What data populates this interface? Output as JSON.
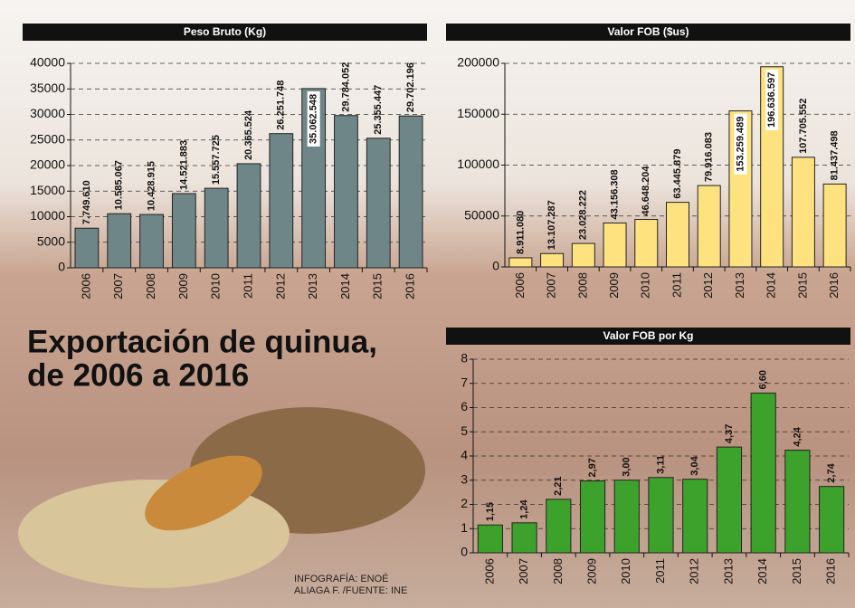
{
  "title_lines": [
    "Exportación de quinua,",
    "de 2006 a 2016"
  ],
  "credit_lines": [
    "INFOGRAFÍA: ENOÉ",
    "ALIAGA F. /FUENTE: INE"
  ],
  "chart_data": [
    {
      "type": "bar",
      "title": "Peso Bruto (Kg)",
      "categories": [
        "2006",
        "2007",
        "2008",
        "2009",
        "2010",
        "2011",
        "2012",
        "2013",
        "2014",
        "2015",
        "2016"
      ],
      "values": [
        7749.61,
        10585.067,
        10428.915,
        14521.883,
        15557.725,
        20365.524,
        26251.748,
        35062.548,
        29784.052,
        25355.447,
        29702.196
      ],
      "value_labels": [
        "7.749.610",
        "10.585.067",
        "10.428.915",
        "14.521.883",
        "15.557.725",
        "20.365.524",
        "26.251.748",
        "35.062.548",
        "29.784.052",
        "25.355.447",
        "29.702.196"
      ],
      "color": "#6f8688",
      "ylim": [
        0,
        40000
      ],
      "yticks": [
        0,
        5000,
        10000,
        15000,
        20000,
        25000,
        30000,
        35000,
        40000
      ],
      "grid": true
    },
    {
      "type": "bar",
      "title": "Valor FOB ($us)",
      "categories": [
        "2006",
        "2007",
        "2008",
        "2009",
        "2010",
        "2011",
        "2012",
        "2013",
        "2014",
        "2015",
        "2016"
      ],
      "values": [
        8911.08,
        13107.287,
        23028.222,
        43156.308,
        46648.204,
        63445.879,
        79916.083,
        153259.489,
        196636.597,
        107705.552,
        81437.498
      ],
      "value_labels": [
        "8.911.080",
        "13.107.287",
        "23.028.222",
        "43.156.308",
        "46.648.204",
        "63.445.879",
        "79.916.083",
        "153.259.489",
        "196.636.597",
        "107.705.552",
        "81.437.498"
      ],
      "color": "#fde27f",
      "ylim": [
        0,
        200000
      ],
      "yticks": [
        0,
        50000,
        100000,
        150000,
        200000
      ],
      "grid": true
    },
    {
      "type": "bar",
      "title": "Valor FOB por Kg",
      "categories": [
        "2006",
        "2007",
        "2008",
        "2009",
        "2010",
        "2011",
        "2012",
        "2013",
        "2014",
        "2015",
        "2016"
      ],
      "values": [
        1.15,
        1.24,
        2.21,
        2.97,
        3.0,
        3.11,
        3.04,
        4.37,
        6.6,
        4.24,
        2.74
      ],
      "value_labels": [
        "1,15",
        "1,24",
        "2,21",
        "2,97",
        "3,00",
        "3,11",
        "3,04",
        "4,37",
        "6,60",
        "4,24",
        "2,74"
      ],
      "color": "#3da22c",
      "ylim": [
        0,
        8
      ],
      "yticks": [
        0,
        1,
        2,
        3,
        4,
        5,
        6,
        7,
        8
      ],
      "grid": true
    }
  ]
}
